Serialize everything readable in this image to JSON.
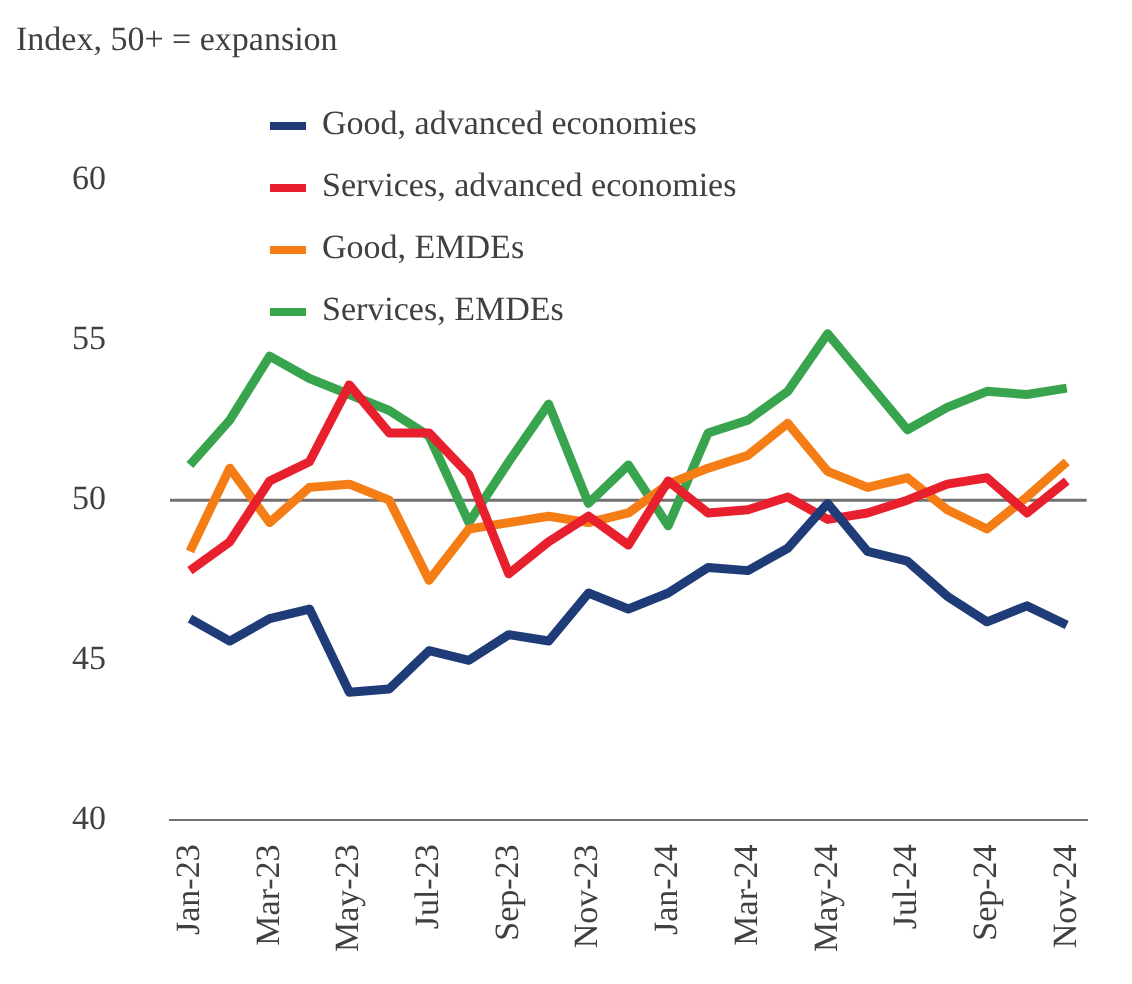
{
  "chart_data": {
    "type": "line",
    "ylabel": "Index, 50+ = expansion",
    "categories": [
      "Jan-23",
      null,
      "Mar-23",
      null,
      "May-23",
      null,
      "Jul-23",
      null,
      "Sep-23",
      null,
      "Nov-23",
      null,
      "Jan-24",
      null,
      "Mar-24",
      null,
      "May-24",
      null,
      "Jul-24",
      null,
      "Sep-24",
      null,
      "Nov-24"
    ],
    "series": [
      {
        "name": "Good, advanced economies",
        "color": "#1f3c78",
        "values": [
          46.3,
          45.6,
          46.3,
          46.6,
          44.0,
          44.1,
          45.3,
          45.0,
          45.8,
          45.6,
          47.1,
          46.6,
          47.1,
          47.9,
          47.8,
          48.5,
          49.9,
          48.4,
          48.1,
          47.0,
          46.2,
          46.7,
          46.1
        ]
      },
      {
        "name": "Services, advanced economies",
        "color": "#e8202e",
        "values": [
          47.8,
          48.7,
          50.6,
          51.2,
          53.6,
          52.1,
          52.1,
          50.8,
          47.7,
          48.7,
          49.5,
          48.6,
          50.6,
          49.6,
          49.7,
          50.1,
          49.4,
          49.6,
          50.0,
          50.5,
          50.7,
          49.6,
          50.6
        ]
      },
      {
        "name": "Good, EMDEs",
        "color": "#f47d16",
        "values": [
          48.4,
          51.0,
          49.3,
          50.4,
          50.5,
          50.0,
          47.5,
          49.1,
          49.3,
          49.5,
          49.3,
          49.6,
          50.5,
          51.0,
          51.4,
          52.4,
          50.9,
          50.4,
          50.7,
          49.7,
          49.1,
          50.1,
          51.2
        ]
      },
      {
        "name": "Services, EMDEs",
        "color": "#38a54e",
        "values": [
          51.1,
          52.5,
          54.5,
          53.8,
          53.3,
          52.8,
          52.0,
          49.3,
          51.2,
          53.0,
          49.9,
          51.1,
          49.2,
          52.1,
          52.5,
          53.4,
          55.2,
          53.7,
          52.2,
          52.9,
          53.4,
          53.3,
          53.5
        ]
      }
    ],
    "ylim": [
      40,
      60
    ],
    "yticks": [
      40,
      45,
      50,
      55,
      60
    ],
    "grid": false,
    "legend": "top",
    "marker": "none",
    "line_style": "solid",
    "ref_lines": [
      {
        "axis": "y",
        "value": 50,
        "color": "#707070"
      }
    ]
  }
}
